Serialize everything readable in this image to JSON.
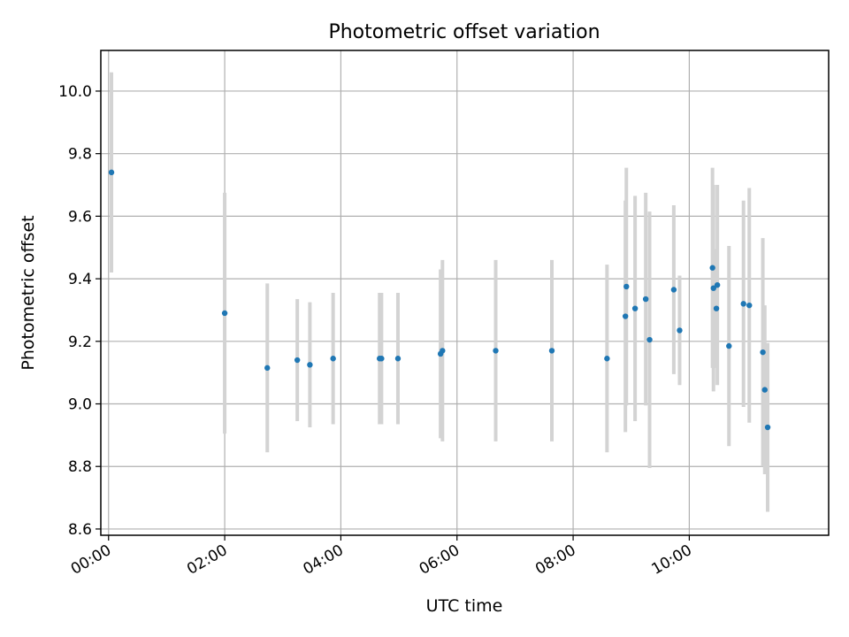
{
  "chart_data": {
    "type": "scatter",
    "title": "Photometric offset variation",
    "xlabel": "UTC time",
    "ylabel": "Photometric offset",
    "xlim": [
      "-00:08",
      "12:24"
    ],
    "ylim": [
      8.58,
      10.13
    ],
    "xticks": [
      "00:00",
      "02:00",
      "04:00",
      "06:00",
      "08:00",
      "10:00"
    ],
    "yticks": [
      "8.6",
      "8.8",
      "9.0",
      "9.2",
      "9.4",
      "9.6",
      "9.8",
      "10.0"
    ],
    "grid": true,
    "marker_color": "#1f77b4",
    "errorbar_color": "#d3d3d3",
    "series": [
      {
        "points": [
          {
            "x": "00:03",
            "y": 9.74,
            "err": 0.32
          },
          {
            "x": "02:00",
            "y": 9.29,
            "err": 0.385
          },
          {
            "x": "02:44",
            "y": 9.115,
            "err": 0.27
          },
          {
            "x": "03:15",
            "y": 9.14,
            "err": 0.195
          },
          {
            "x": "03:28",
            "y": 9.125,
            "err": 0.2
          },
          {
            "x": "03:52",
            "y": 9.145,
            "err": 0.21
          },
          {
            "x": "04:40",
            "y": 9.145,
            "err": 0.21
          },
          {
            "x": "04:42",
            "y": 9.145,
            "err": 0.21
          },
          {
            "x": "04:59",
            "y": 9.145,
            "err": 0.21
          },
          {
            "x": "05:43",
            "y": 9.16,
            "err": 0.27
          },
          {
            "x": "05:45",
            "y": 9.17,
            "err": 0.29
          },
          {
            "x": "06:40",
            "y": 9.17,
            "err": 0.29
          },
          {
            "x": "07:38",
            "y": 9.17,
            "err": 0.29
          },
          {
            "x": "08:35",
            "y": 9.145,
            "err": 0.3
          },
          {
            "x": "08:54",
            "y": 9.28,
            "err": 0.37
          },
          {
            "x": "08:55",
            "y": 9.375,
            "err": 0.38
          },
          {
            "x": "09:04",
            "y": 9.305,
            "err": 0.36
          },
          {
            "x": "09:15",
            "y": 9.335,
            "err": 0.34
          },
          {
            "x": "09:19",
            "y": 9.205,
            "err": 0.41
          },
          {
            "x": "09:44",
            "y": 9.365,
            "err": 0.27
          },
          {
            "x": "09:50",
            "y": 9.235,
            "err": 0.175
          },
          {
            "x": "10:24",
            "y": 9.435,
            "err": 0.32
          },
          {
            "x": "10:25",
            "y": 9.37,
            "err": 0.33
          },
          {
            "x": "10:28",
            "y": 9.305,
            "err": 0.19
          },
          {
            "x": "10:29",
            "y": 9.38,
            "err": 0.32
          },
          {
            "x": "10:41",
            "y": 9.185,
            "err": 0.32
          },
          {
            "x": "10:56",
            "y": 9.32,
            "err": 0.33
          },
          {
            "x": "11:02",
            "y": 9.315,
            "err": 0.375
          },
          {
            "x": "11:16",
            "y": 9.165,
            "err": 0.365
          },
          {
            "x": "11:18",
            "y": 9.045,
            "err": 0.27
          },
          {
            "x": "11:21",
            "y": 8.925,
            "err": 0.27
          }
        ]
      }
    ]
  }
}
